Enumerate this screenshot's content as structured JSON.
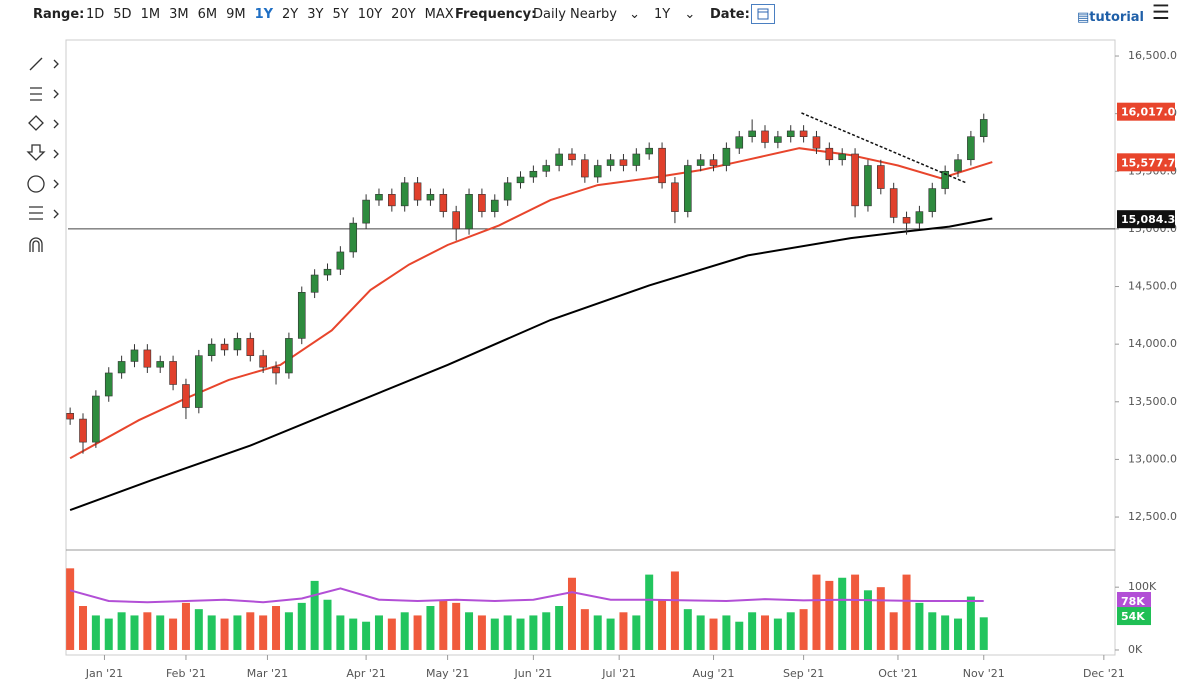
{
  "toolbar": {
    "range_label": "Range:",
    "ranges": [
      "1D",
      "5D",
      "1M",
      "3M",
      "6M",
      "9M",
      "1Y",
      "2Y",
      "3Y",
      "5Y",
      "10Y",
      "20Y",
      "MAX"
    ],
    "active_range": "1Y",
    "frequency_label": "Frequency:",
    "frequency": "Daily Nearby",
    "period": "1Y",
    "date_label": "Date:",
    "tutorial": "tutorial"
  },
  "chart_data": [
    {
      "type": "candlestick",
      "up_color": "#2e8b3e",
      "down_color": "#e0402c",
      "xlim": [
        -0.5,
        243.6
      ],
      "ylim": [
        12214,
        16639
      ],
      "xticks": [
        {
          "value": 8,
          "label": "Jan '21"
        },
        {
          "value": 27,
          "label": "Feb '21"
        },
        {
          "value": 46,
          "label": "Mar '21"
        },
        {
          "value": 69,
          "label": "Apr '21"
        },
        {
          "value": 88,
          "label": "May '21"
        },
        {
          "value": 108,
          "label": "Jun '21"
        },
        {
          "value": 128,
          "label": "Jul '21"
        },
        {
          "value": 150,
          "label": "Aug '21"
        },
        {
          "value": 171,
          "label": "Sep '21"
        },
        {
          "value": 193,
          "label": "Oct '21"
        },
        {
          "value": 213,
          "label": "Nov '21"
        },
        {
          "value": 241,
          "label": "Dec '21"
        }
      ],
      "yticks": [
        {
          "value": 12500,
          "label": "12,500.0"
        },
        {
          "value": 13000,
          "label": "13,000.0"
        },
        {
          "value": 13500,
          "label": "13,500.0"
        },
        {
          "value": 14000,
          "label": "14,000.0"
        },
        {
          "value": 14500,
          "label": "14,500.0"
        },
        {
          "value": 15000,
          "label": "15,000.0"
        },
        {
          "value": 15500,
          "label": "15,500.0"
        },
        {
          "value": 16000,
          "label": "16,000.0"
        },
        {
          "value": 16500,
          "label": "16,500.0"
        }
      ],
      "x": [
        0,
        3,
        6,
        9,
        12,
        15,
        18,
        21,
        24,
        27,
        30,
        33,
        36,
        39,
        42,
        45,
        48,
        51,
        54,
        57,
        60,
        63,
        66,
        69,
        72,
        75,
        78,
        81,
        84,
        87,
        90,
        93,
        96,
        99,
        102,
        105,
        108,
        111,
        114,
        117,
        120,
        123,
        126,
        129,
        132,
        135,
        138,
        141,
        144,
        147,
        150,
        153,
        156,
        159,
        162,
        165,
        168,
        171,
        174,
        177,
        180,
        183,
        186,
        189,
        192,
        195,
        198,
        201,
        204,
        207,
        210,
        213
      ],
      "open": [
        13400,
        13350,
        13150,
        13550,
        13750,
        13850,
        13950,
        13800,
        13850,
        13650,
        13450,
        13900,
        14000,
        13950,
        14050,
        13900,
        13800,
        13750,
        14050,
        14450,
        14600,
        14650,
        14800,
        15050,
        15250,
        15300,
        15200,
        15400,
        15250,
        15300,
        15150,
        15000,
        15300,
        15150,
        15250,
        15400,
        15450,
        15500,
        15550,
        15650,
        15600,
        15450,
        15550,
        15600,
        15550,
        15650,
        15700,
        15400,
        15150,
        15550,
        15600,
        15550,
        15700,
        15800,
        15850,
        15750,
        15800,
        15850,
        15800,
        15700,
        15600,
        15650,
        15200,
        15550,
        15350,
        15100,
        15050,
        15150,
        15350,
        15500,
        15600,
        15800
      ],
      "high": [
        13450,
        13400,
        13600,
        13800,
        13900,
        14000,
        14000,
        13900,
        13900,
        13700,
        13950,
        14050,
        14050,
        14100,
        14100,
        13950,
        13850,
        14100,
        14500,
        14650,
        14700,
        14850,
        15100,
        15300,
        15350,
        15350,
        15450,
        15450,
        15350,
        15350,
        15200,
        15350,
        15350,
        15300,
        15450,
        15500,
        15550,
        15600,
        15700,
        15700,
        15650,
        15600,
        15650,
        15650,
        15700,
        15750,
        15750,
        15450,
        15600,
        15650,
        15650,
        15750,
        15850,
        15950,
        15900,
        15850,
        15900,
        15900,
        15850,
        15750,
        15700,
        15700,
        15600,
        15600,
        15400,
        15150,
        15200,
        15400,
        15550,
        15650,
        15850,
        16000
      ],
      "low": [
        13300,
        13050,
        13100,
        13500,
        13700,
        13800,
        13750,
        13750,
        13600,
        13350,
        13400,
        13850,
        13900,
        13900,
        13850,
        13750,
        13650,
        13700,
        14000,
        14400,
        14550,
        14600,
        14750,
        15000,
        15200,
        15150,
        15150,
        15200,
        15200,
        15100,
        14900,
        14950,
        15100,
        15100,
        15200,
        15350,
        15400,
        15450,
        15500,
        15550,
        15400,
        15400,
        15500,
        15500,
        15500,
        15600,
        15350,
        15050,
        15100,
        15500,
        15500,
        15500,
        15650,
        15750,
        15700,
        15700,
        15750,
        15750,
        15650,
        15550,
        15550,
        15100,
        15150,
        15300,
        15050,
        14950,
        15000,
        15100,
        15300,
        15450,
        15550,
        15750
      ],
      "close": [
        13350,
        13150,
        13550,
        13750,
        13850,
        13950,
        13800,
        13850,
        13650,
        13450,
        13900,
        14000,
        13950,
        14050,
        13900,
        13800,
        13750,
        14050,
        14450,
        14600,
        14650,
        14800,
        15050,
        15250,
        15300,
        15200,
        15400,
        15250,
        15300,
        15150,
        15000,
        15300,
        15150,
        15250,
        15400,
        15450,
        15500,
        15550,
        15650,
        15600,
        15450,
        15550,
        15600,
        15550,
        15650,
        15700,
        15400,
        15150,
        15550,
        15600,
        15550,
        15700,
        15800,
        15850,
        15750,
        15800,
        15850,
        15800,
        15700,
        15600,
        15650,
        15200,
        15550,
        15350,
        15100,
        15050,
        15150,
        15350,
        15500,
        15600,
        15800,
        15950
      ],
      "lines": [
        {
          "color": "#e8452c",
          "x": [
            0,
            16,
            27,
            37,
            49,
            61,
            70,
            79,
            88,
            100,
            112,
            123,
            135,
            147,
            158,
            170,
            182,
            193,
            203,
            215
          ],
          "values": [
            13010,
            13340,
            13530,
            13690,
            13820,
            14120,
            14470,
            14690,
            14860,
            15030,
            15250,
            15380,
            15440,
            15510,
            15600,
            15700,
            15640,
            15550,
            15440,
            15580
          ]
        },
        {
          "color": "#000000",
          "x": [
            0,
            19,
            42,
            65,
            88,
            112,
            135,
            158,
            182,
            193,
            205,
            215
          ],
          "values": [
            12560,
            12820,
            13120,
            13470,
            13820,
            14210,
            14510,
            14770,
            14920,
            14970,
            15020,
            15090
          ]
        }
      ],
      "hline": 15000,
      "trendline": {
        "x": [
          170.5,
          209
        ],
        "values": [
          16006,
          15398
        ]
      },
      "price_tags": [
        {
          "value": 16017,
          "label": "16,017.0",
          "color": "#e8452c"
        },
        {
          "value": 15577.7,
          "label": "15,577.7",
          "color": "#e8452c"
        },
        {
          "value": 15084.3,
          "label": "15,084.3",
          "color": "#111111"
        }
      ]
    },
    {
      "type": "bar",
      "up_color": "#22c55e",
      "down_color": "#f05a3c",
      "xlim": [
        -0.5,
        243.6
      ],
      "ylim": [
        -8,
        156
      ],
      "yticks": [
        {
          "value": 0,
          "label": "0K"
        },
        {
          "value": 100,
          "label": "100K"
        }
      ],
      "values": [
        130,
        70,
        55,
        50,
        60,
        55,
        60,
        55,
        50,
        75,
        65,
        55,
        50,
        55,
        60,
        55,
        70,
        60,
        75,
        110,
        80,
        55,
        50,
        45,
        55,
        50,
        60,
        55,
        70,
        80,
        75,
        60,
        55,
        50,
        55,
        50,
        55,
        60,
        70,
        115,
        65,
        55,
        50,
        60,
        55,
        120,
        80,
        125,
        65,
        55,
        50,
        55,
        45,
        60,
        55,
        50,
        60,
        65,
        120,
        110,
        115,
        120,
        95,
        100,
        60,
        120,
        75,
        60,
        55,
        50,
        85,
        52
      ],
      "ma": {
        "color": "#b24fd6",
        "x": [
          0,
          9,
          18,
          27,
          36,
          45,
          54,
          63,
          72,
          81,
          90,
          99,
          108,
          117,
          126,
          135,
          144,
          153,
          162,
          171,
          180,
          189,
          198,
          207,
          213
        ],
        "values": [
          95,
          78,
          76,
          78,
          80,
          76,
          82,
          98,
          80,
          78,
          80,
          78,
          80,
          92,
          80,
          80,
          79,
          78,
          81,
          79,
          80,
          79,
          78,
          78,
          78
        ]
      },
      "value_tags": [
        {
          "value": 78,
          "label": "78K",
          "color": "#b24fd6"
        },
        {
          "value": 54,
          "label": "54K",
          "color": "#1fbf55"
        }
      ]
    }
  ]
}
